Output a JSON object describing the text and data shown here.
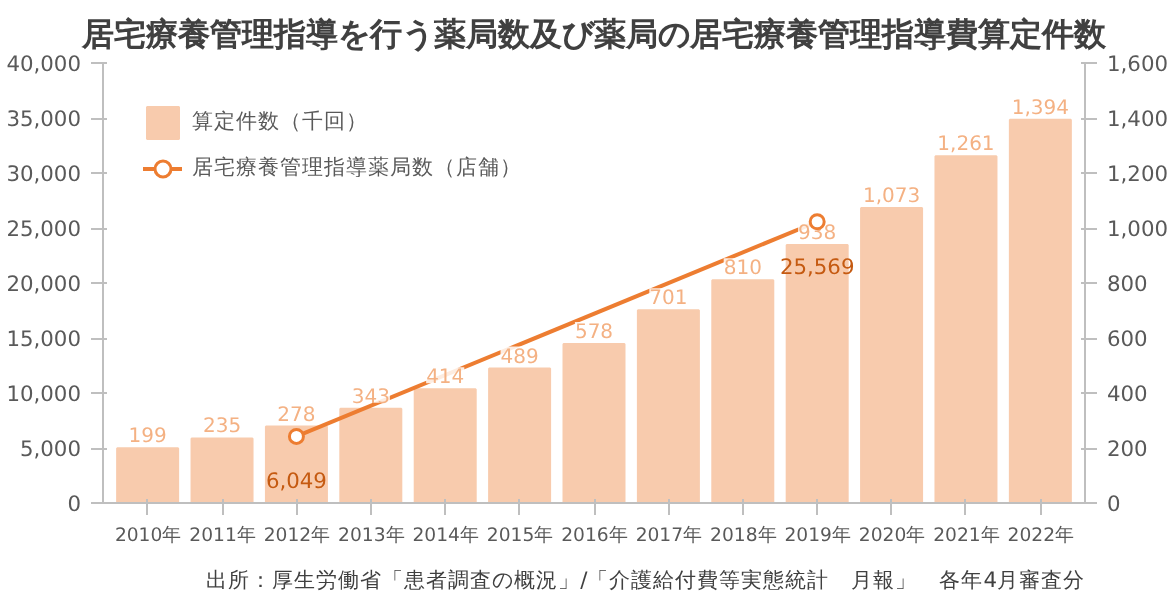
{
  "chart_data": {
    "type": "bar",
    "title": "居宅療養管理指導を行う薬局数及び薬局の居宅療養管理指導費算定件数",
    "categories": [
      "2010年",
      "2011年",
      "2012年",
      "2013年",
      "2014年",
      "2015年",
      "2016年",
      "2017年",
      "2018年",
      "2019年",
      "2020年",
      "2021年",
      "2022年"
    ],
    "series": [
      {
        "name": "算定件数（千回）",
        "axis": "y2",
        "color": "#f8cbad",
        "values": [
          199,
          235,
          278,
          343,
          414,
          489,
          578,
          701,
          810,
          938,
          1073,
          1261,
          1394
        ],
        "value_labels": [
          "199",
          "235",
          "278",
          "343",
          "414",
          "489",
          "578",
          "701",
          "810",
          "938",
          "1,073",
          "1,261",
          "1,394"
        ]
      },
      {
        "name": "居宅療養管理指導薬局数（店舗）",
        "type": "line",
        "axis": "y",
        "color": "#ed7d31",
        "marker": "circle",
        "values": [
          null,
          null,
          6049,
          null,
          null,
          null,
          null,
          null,
          null,
          25569,
          null,
          null,
          null
        ],
        "value_labels": [
          null,
          null,
          "6,049",
          null,
          null,
          null,
          null,
          null,
          null,
          "25,569",
          null,
          null,
          null
        ]
      }
    ],
    "ylim": [
      0,
      40000
    ],
    "yticks": [
      {
        "value": 0,
        "label": "0"
      },
      {
        "value": 5000,
        "label": "5,000"
      },
      {
        "value": 10000,
        "label": "10,000"
      },
      {
        "value": 15000,
        "label": "15,000"
      },
      {
        "value": 20000,
        "label": "20,000"
      },
      {
        "value": 25000,
        "label": "25,000"
      },
      {
        "value": 30000,
        "label": "30,000"
      },
      {
        "value": 35000,
        "label": "35,000"
      },
      {
        "value": 40000,
        "label": "40,000"
      }
    ],
    "y2lim": [
      0,
      1600
    ],
    "y2ticks": [
      {
        "value": 0,
        "label": "0"
      },
      {
        "value": 200,
        "label": "200"
      },
      {
        "value": 400,
        "label": "400"
      },
      {
        "value": 600,
        "label": "600"
      },
      {
        "value": 800,
        "label": "800"
      },
      {
        "value": 1000,
        "label": "1,000"
      },
      {
        "value": 1200,
        "label": "1,200"
      },
      {
        "value": 1400,
        "label": "1,400"
      },
      {
        "value": 1600,
        "label": "1,600"
      }
    ],
    "grid": false,
    "legend": "top left",
    "annotations": [
      "出所：厚生労働省「患者調査の概況」/「介護給付費等実態統計　月報」　各年4月審査分"
    ]
  }
}
